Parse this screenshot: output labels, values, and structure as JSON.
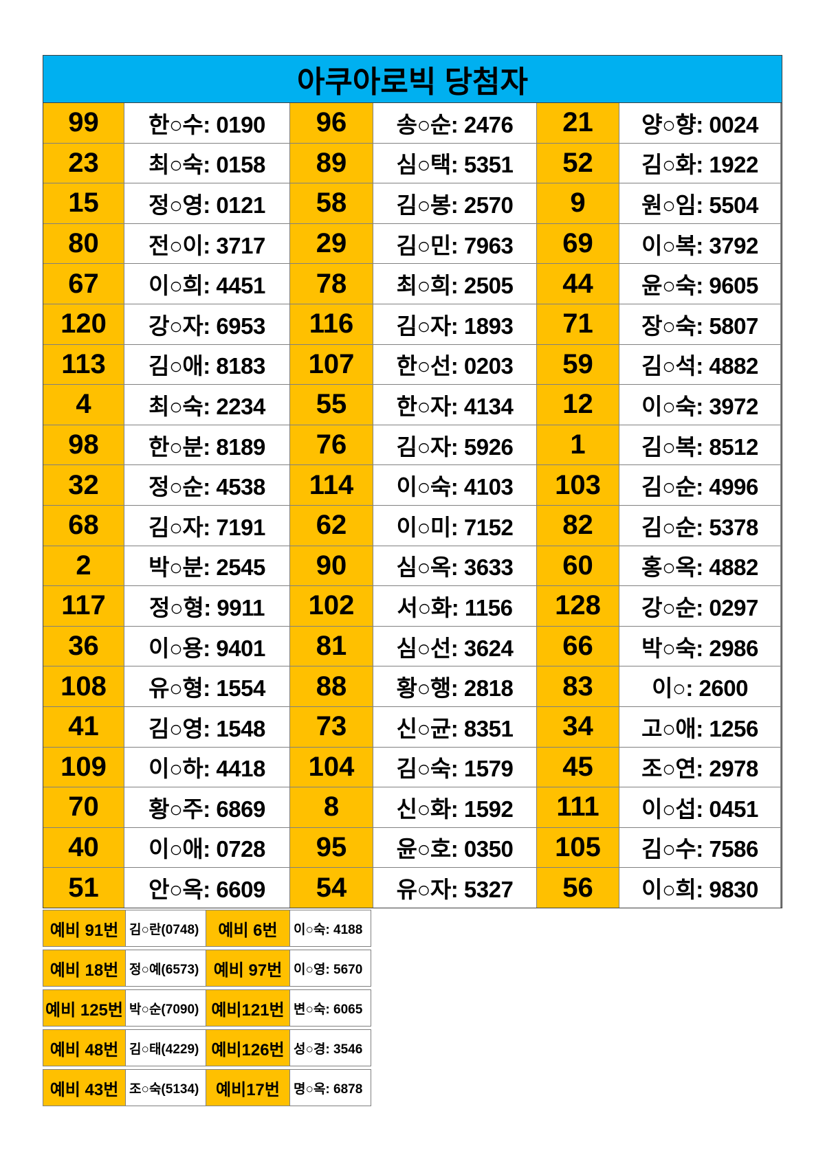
{
  "title": "아쿠아로빅 당첨자",
  "colors": {
    "header_bg": "#00B0F0",
    "number_bg": "#FFC000",
    "grid_line": "#7f7f7f",
    "text": "#000000"
  },
  "winners": {
    "rows": [
      [
        {
          "num": "99",
          "name": "한○수: 0190"
        },
        {
          "num": "96",
          "name": "송○순: 2476"
        },
        {
          "num": "21",
          "name": "양○향: 0024"
        }
      ],
      [
        {
          "num": "23",
          "name": "최○숙: 0158"
        },
        {
          "num": "89",
          "name": "심○택: 5351"
        },
        {
          "num": "52",
          "name": "김○화: 1922"
        }
      ],
      [
        {
          "num": "15",
          "name": "정○영: 0121"
        },
        {
          "num": "58",
          "name": "김○봉: 2570"
        },
        {
          "num": "9",
          "name": "원○임: 5504"
        }
      ],
      [
        {
          "num": "80",
          "name": "전○이: 3717"
        },
        {
          "num": "29",
          "name": "김○민: 7963"
        },
        {
          "num": "69",
          "name": "이○복: 3792"
        }
      ],
      [
        {
          "num": "67",
          "name": "이○희: 4451"
        },
        {
          "num": "78",
          "name": "최○희: 2505"
        },
        {
          "num": "44",
          "name": "윤○숙: 9605"
        }
      ],
      [
        {
          "num": "120",
          "name": "강○자: 6953"
        },
        {
          "num": "116",
          "name": "김○자: 1893"
        },
        {
          "num": "71",
          "name": "장○숙: 5807"
        }
      ],
      [
        {
          "num": "113",
          "name": "김○애: 8183"
        },
        {
          "num": "107",
          "name": "한○선: 0203"
        },
        {
          "num": "59",
          "name": "김○석: 4882"
        }
      ],
      [
        {
          "num": "4",
          "name": "최○숙: 2234"
        },
        {
          "num": "55",
          "name": "한○자: 4134"
        },
        {
          "num": "12",
          "name": "이○숙: 3972"
        }
      ],
      [
        {
          "num": "98",
          "name": "한○분: 8189"
        },
        {
          "num": "76",
          "name": "김○자: 5926"
        },
        {
          "num": "1",
          "name": "김○복: 8512"
        }
      ],
      [
        {
          "num": "32",
          "name": "정○순: 4538"
        },
        {
          "num": "114",
          "name": "이○숙: 4103"
        },
        {
          "num": "103",
          "name": "김○순: 4996"
        }
      ],
      [
        {
          "num": "68",
          "name": "김○자: 7191"
        },
        {
          "num": "62",
          "name": "이○미: 7152"
        },
        {
          "num": "82",
          "name": "김○순: 5378"
        }
      ],
      [
        {
          "num": "2",
          "name": "박○분: 2545"
        },
        {
          "num": "90",
          "name": "심○옥: 3633"
        },
        {
          "num": "60",
          "name": "홍○옥: 4882"
        }
      ],
      [
        {
          "num": "117",
          "name": "정○형: 9911"
        },
        {
          "num": "102",
          "name": "서○화: 1156"
        },
        {
          "num": "128",
          "name": "강○순: 0297"
        }
      ],
      [
        {
          "num": "36",
          "name": "이○용: 9401"
        },
        {
          "num": "81",
          "name": "심○선: 3624"
        },
        {
          "num": "66",
          "name": "박○숙: 2986"
        }
      ],
      [
        {
          "num": "108",
          "name": "유○형: 1554"
        },
        {
          "num": "88",
          "name": "황○행: 2818"
        },
        {
          "num": "83",
          "name": "이○: 2600"
        }
      ],
      [
        {
          "num": "41",
          "name": "김○영: 1548"
        },
        {
          "num": "73",
          "name": "신○균: 8351"
        },
        {
          "num": "34",
          "name": "고○애: 1256"
        }
      ],
      [
        {
          "num": "109",
          "name": "이○하: 4418"
        },
        {
          "num": "104",
          "name": "김○숙: 1579"
        },
        {
          "num": "45",
          "name": "조○연: 2978"
        }
      ],
      [
        {
          "num": "70",
          "name": "황○주: 6869"
        },
        {
          "num": "8",
          "name": "신○화: 1592"
        },
        {
          "num": "111",
          "name": "이○섭: 0451"
        }
      ],
      [
        {
          "num": "40",
          "name": "이○애: 0728"
        },
        {
          "num": "95",
          "name": "윤○호: 0350"
        },
        {
          "num": "105",
          "name": "김○수: 7586"
        }
      ],
      [
        {
          "num": "51",
          "name": "안○옥: 6609"
        },
        {
          "num": "54",
          "name": "유○자: 5327"
        },
        {
          "num": "56",
          "name": "이○희: 9830"
        }
      ]
    ]
  },
  "reserves": [
    {
      "label1": "예비 91번",
      "value1": "김○란(0748)",
      "label2": "예비 6번",
      "value2": "이○숙: 4188"
    },
    {
      "label1": "예비 18번",
      "value1": "정○예(6573)",
      "label2": "예비 97번",
      "value2": "이○영: 5670"
    },
    {
      "label1": "예비 125번",
      "value1": "박○순(7090)",
      "label2": "예비121번",
      "value2": "변○숙: 6065"
    },
    {
      "label1": "예비 48번",
      "value1": "김○태(4229)",
      "label2": "예비126번",
      "value2": "성○경: 3546"
    },
    {
      "label1": "예비 43번",
      "value1": "조○숙(5134)",
      "label2": "예비17번",
      "value2": "명○옥: 6878"
    }
  ]
}
